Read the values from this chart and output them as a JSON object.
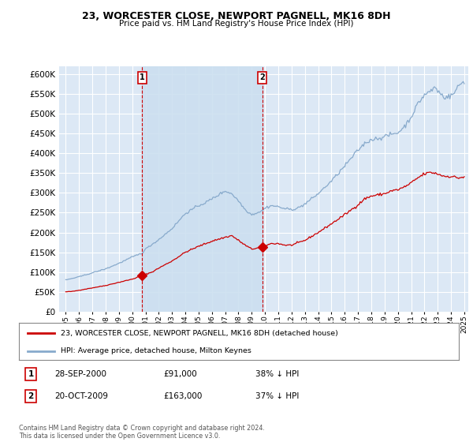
{
  "title": "23, WORCESTER CLOSE, NEWPORT PAGNELL, MK16 8DH",
  "subtitle": "Price paid vs. HM Land Registry's House Price Index (HPI)",
  "background_color": "#ffffff",
  "plot_bg_color": "#dce8f5",
  "grid_color": "#ffffff",
  "shade_color": "#ccdff0",
  "legend_label_red": "23, WORCESTER CLOSE, NEWPORT PAGNELL, MK16 8DH (detached house)",
  "legend_label_blue": "HPI: Average price, detached house, Milton Keynes",
  "footnote": "Contains HM Land Registry data © Crown copyright and database right 2024.\nThis data is licensed under the Open Government Licence v3.0.",
  "sale1_date": "28-SEP-2000",
  "sale1_price": "£91,000",
  "sale1_hpi": "38% ↓ HPI",
  "sale2_date": "20-OCT-2009",
  "sale2_price": "£163,000",
  "sale2_hpi": "37% ↓ HPI",
  "ylim": [
    0,
    620000
  ],
  "yticks": [
    0,
    50000,
    100000,
    150000,
    200000,
    250000,
    300000,
    350000,
    400000,
    450000,
    500000,
    550000,
    600000
  ],
  "red_color": "#cc0000",
  "blue_color": "#88aacc",
  "sale1_x": 2000.75,
  "sale2_x": 2009.79,
  "sale1_y": 91000,
  "sale2_y": 163000,
  "xlim": [
    1994.5,
    2025.3
  ],
  "xtick_years": [
    1995,
    1996,
    1997,
    1998,
    1999,
    2000,
    2001,
    2002,
    2003,
    2004,
    2005,
    2006,
    2007,
    2008,
    2009,
    2010,
    2011,
    2012,
    2013,
    2014,
    2015,
    2016,
    2017,
    2018,
    2019,
    2020,
    2021,
    2022,
    2023,
    2024,
    2025
  ]
}
